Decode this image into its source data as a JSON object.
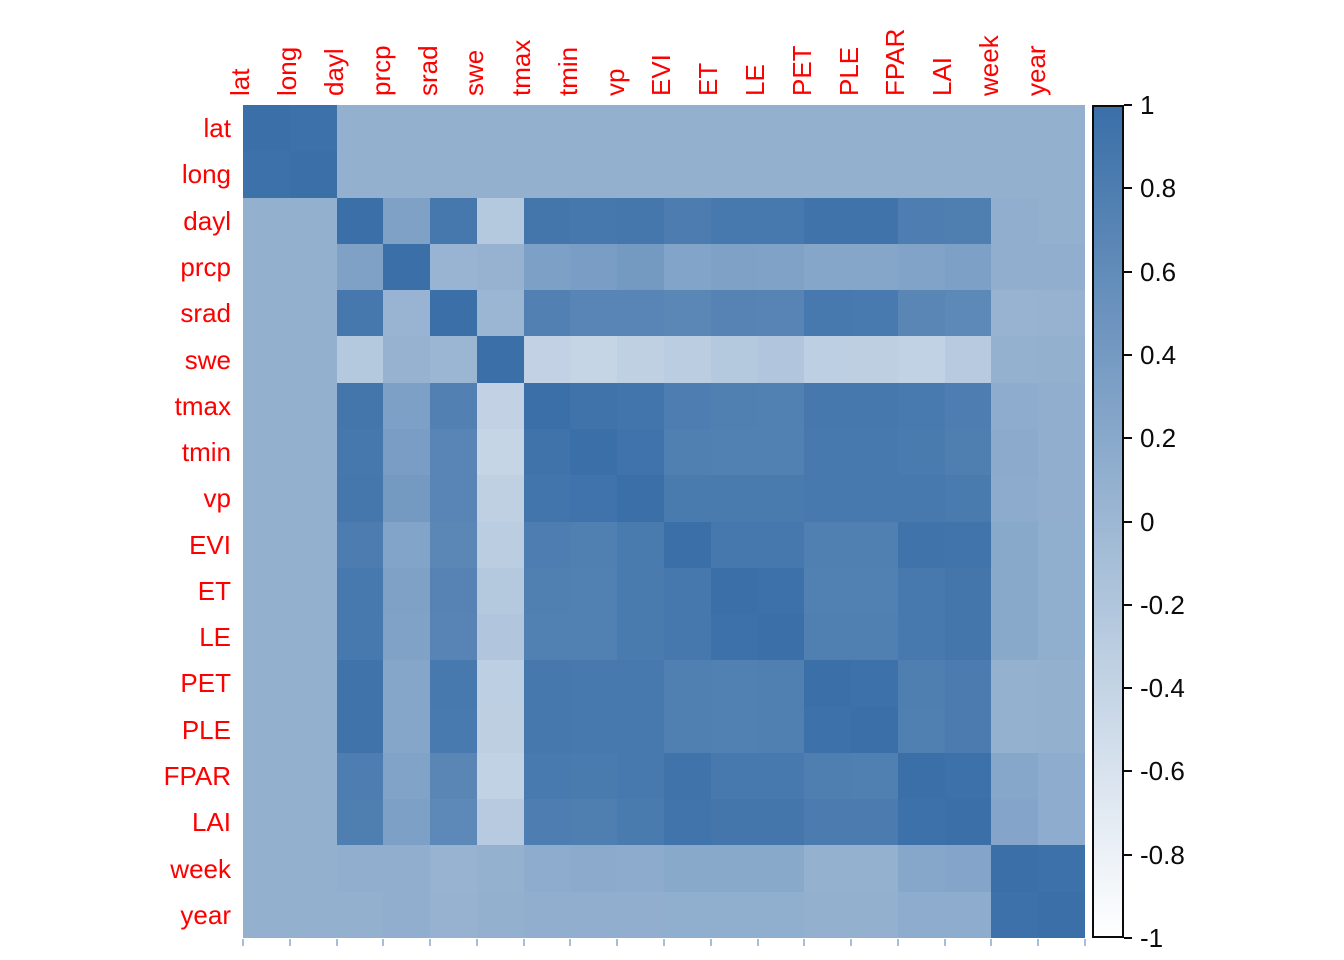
{
  "figure": {
    "description": "Correlation heatmap of environmental variables with vertical colorbar legend"
  },
  "chart_data": {
    "type": "heatmap",
    "title": "",
    "xlabel": "",
    "ylabel": "",
    "legend_position": "right",
    "grid": false,
    "value_range": [
      -1,
      1
    ],
    "axis_label_color": "#ff0000",
    "tick_label_color": "#0b0b0b",
    "axis_tick_color": "#a3bfda",
    "colormap": {
      "low_value_color": "#ffffff",
      "high_value_color": "#3a6fa8"
    },
    "variables": [
      "lat",
      "long",
      "dayl",
      "prcp",
      "srad",
      "swe",
      "tmax",
      "tmin",
      "vp",
      "EVI",
      "ET",
      "LE",
      "PET",
      "PLE",
      "FPAR",
      "LAI",
      "week",
      "year"
    ],
    "matrix": [
      [
        1,
        0.97,
        0.1,
        0.1,
        0.1,
        0.1,
        0.1,
        0.1,
        0.1,
        0.1,
        0.1,
        0.1,
        0.1,
        0.1,
        0.1,
        0.1,
        0.1,
        0.1
      ],
      [
        0.97,
        1,
        0.1,
        0.1,
        0.1,
        0.1,
        0.1,
        0.1,
        0.1,
        0.1,
        0.1,
        0.1,
        0.1,
        0.1,
        0.1,
        0.1,
        0.1,
        0.1
      ],
      [
        0.1,
        0.1,
        1,
        0.3,
        0.88,
        -0.25,
        0.9,
        0.88,
        0.89,
        0.82,
        0.86,
        0.86,
        0.95,
        0.95,
        0.8,
        0.79,
        0.12,
        0.1
      ],
      [
        0.1,
        0.1,
        0.3,
        1,
        0.04,
        0.07,
        0.32,
        0.36,
        0.4,
        0.27,
        0.3,
        0.29,
        0.23,
        0.23,
        0.28,
        0.32,
        0.12,
        0.12
      ],
      [
        0.1,
        0.1,
        0.88,
        0.04,
        1,
        0.02,
        0.76,
        0.7,
        0.7,
        0.67,
        0.72,
        0.71,
        0.86,
        0.85,
        0.68,
        0.64,
        0.05,
        0.07
      ],
      [
        0.1,
        0.1,
        -0.25,
        0.07,
        0.02,
        1,
        -0.38,
        -0.42,
        -0.35,
        -0.3,
        -0.24,
        -0.21,
        -0.33,
        -0.34,
        -0.37,
        -0.27,
        0.08,
        0.1
      ],
      [
        0.1,
        0.1,
        0.9,
        0.32,
        0.76,
        -0.38,
        1,
        0.95,
        0.92,
        0.8,
        0.78,
        0.77,
        0.88,
        0.88,
        0.85,
        0.8,
        0.15,
        0.12
      ],
      [
        0.1,
        0.1,
        0.88,
        0.36,
        0.7,
        -0.42,
        0.95,
        1,
        0.94,
        0.78,
        0.77,
        0.77,
        0.86,
        0.86,
        0.84,
        0.79,
        0.18,
        0.12
      ],
      [
        0.1,
        0.1,
        0.89,
        0.4,
        0.7,
        -0.35,
        0.92,
        0.94,
        1,
        0.84,
        0.84,
        0.84,
        0.86,
        0.86,
        0.86,
        0.84,
        0.16,
        0.12
      ],
      [
        0.1,
        0.1,
        0.82,
        0.27,
        0.67,
        -0.3,
        0.8,
        0.78,
        0.84,
        1,
        0.88,
        0.88,
        0.78,
        0.78,
        0.95,
        0.93,
        0.2,
        0.13
      ],
      [
        0.1,
        0.1,
        0.86,
        0.3,
        0.72,
        -0.24,
        0.78,
        0.77,
        0.84,
        0.88,
        1,
        0.97,
        0.77,
        0.77,
        0.86,
        0.9,
        0.2,
        0.13
      ],
      [
        0.1,
        0.1,
        0.86,
        0.29,
        0.71,
        -0.21,
        0.77,
        0.77,
        0.84,
        0.88,
        0.97,
        1,
        0.78,
        0.78,
        0.86,
        0.9,
        0.2,
        0.13
      ],
      [
        0.1,
        0.1,
        0.95,
        0.23,
        0.86,
        -0.33,
        0.88,
        0.86,
        0.86,
        0.78,
        0.77,
        0.78,
        1,
        0.97,
        0.79,
        0.83,
        0.08,
        0.1
      ],
      [
        0.1,
        0.1,
        0.95,
        0.23,
        0.85,
        -0.34,
        0.88,
        0.86,
        0.86,
        0.78,
        0.77,
        0.78,
        0.97,
        1,
        0.78,
        0.83,
        0.08,
        0.1
      ],
      [
        0.1,
        0.1,
        0.8,
        0.28,
        0.68,
        -0.37,
        0.85,
        0.84,
        0.86,
        0.95,
        0.86,
        0.86,
        0.79,
        0.78,
        1,
        0.97,
        0.22,
        0.15
      ],
      [
        0.1,
        0.1,
        0.79,
        0.32,
        0.64,
        -0.27,
        0.8,
        0.79,
        0.84,
        0.93,
        0.9,
        0.9,
        0.83,
        0.83,
        0.97,
        1,
        0.25,
        0.15
      ],
      [
        0.1,
        0.1,
        0.12,
        0.12,
        0.05,
        0.08,
        0.15,
        0.18,
        0.16,
        0.2,
        0.2,
        0.2,
        0.08,
        0.08,
        0.22,
        0.25,
        1,
        0.97
      ],
      [
        0.1,
        0.1,
        0.1,
        0.12,
        0.07,
        0.1,
        0.12,
        0.12,
        0.12,
        0.13,
        0.13,
        0.13,
        0.1,
        0.1,
        0.15,
        0.15,
        0.97,
        1
      ]
    ],
    "colorbar": {
      "tick_labels": [
        "1",
        "0.8",
        "0.6",
        "0.4",
        "0.2",
        "0",
        "-0.2",
        "-0.4",
        "-0.6",
        "-0.8",
        "-1"
      ],
      "tick_values": [
        1,
        0.8,
        0.6,
        0.4,
        0.2,
        0,
        -0.2,
        -0.4,
        -0.6,
        -0.8,
        -1
      ]
    }
  }
}
